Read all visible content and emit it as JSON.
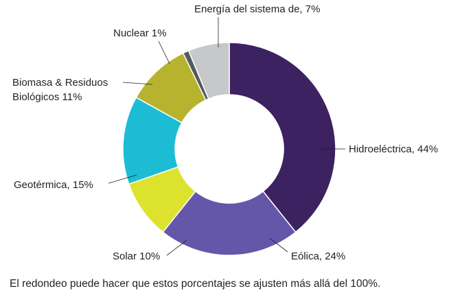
{
  "chart_data": {
    "type": "pie",
    "donut": true,
    "slices": [
      {
        "value": 44,
        "color": "#3c2260",
        "label": "Hidroeléctrica, 44%"
      },
      {
        "value": 24,
        "color": "#6457aa",
        "label": "Eólica, 24%"
      },
      {
        "value": 10,
        "color": "#dde22e",
        "label": "Solar 10%"
      },
      {
        "value": 15,
        "color": "#1cbcd4",
        "label": "Geotérmica, 15%"
      },
      {
        "value": 11,
        "color": "#b7b32e",
        "labelLines": [
          "Biomasa & Residuos",
          "Biológicos 11%"
        ]
      },
      {
        "value": 1,
        "color": "#555a5e",
        "label": "Nuclear 1%"
      },
      {
        "value": 7,
        "color": "#c7c8ca",
        "label": "Energía del sistema de, 7%"
      }
    ],
    "footnote": "El redondeo puede hacer que estos porcentajes se ajusten más allá del 100%."
  }
}
